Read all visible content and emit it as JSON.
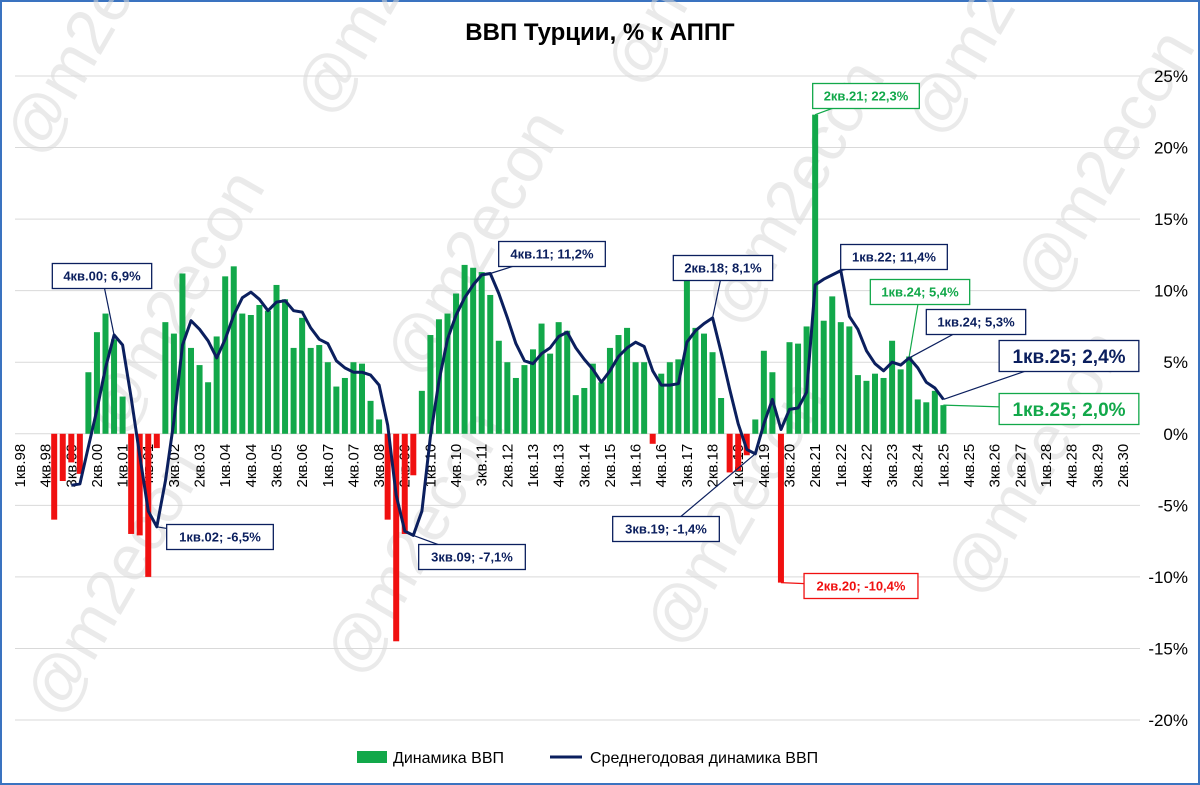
{
  "chart_data": {
    "type": "bar_line",
    "title": "ВВП Турции, % к АППГ",
    "watermark": "@m2econ",
    "categories": [
      "1кв.98",
      null,
      null,
      "4кв.98",
      null,
      null,
      "3кв.99",
      null,
      null,
      "2кв.00",
      null,
      null,
      "1кв.01",
      null,
      null,
      "4кв.01",
      null,
      null,
      "3кв.02",
      null,
      null,
      "2кв.03",
      null,
      null,
      "1кв.04",
      null,
      null,
      "4кв.04",
      null,
      null,
      "3кв.05",
      null,
      null,
      "2кв.06",
      null,
      null,
      "1кв.07",
      null,
      null,
      "4кв.07",
      null,
      null,
      "3кв.08",
      null,
      null,
      "2кв.09",
      null,
      null,
      "1кв.10",
      null,
      null,
      "4кв.10",
      null,
      null,
      "3кв.11",
      null,
      null,
      "2кв.12",
      null,
      null,
      "1кв.13",
      null,
      null,
      "4кв.13",
      null,
      null,
      "3кв.14",
      null,
      null,
      "2кв.15",
      null,
      null,
      "1кв.16",
      null,
      null,
      "4кв.16",
      null,
      null,
      "3кв.17",
      null,
      null,
      "2кв.18",
      null,
      null,
      "1кв.19",
      null,
      null,
      "4кв.19",
      null,
      null,
      "3кв.20",
      null,
      null,
      "2кв.21",
      null,
      null,
      "1кв.22",
      null,
      null,
      "4кв.22",
      null,
      null,
      "3кв.23",
      null,
      null,
      "2кв.24",
      null,
      null,
      "1кв.25",
      null,
      null,
      "4кв.25",
      null,
      null,
      "3кв.26",
      null,
      null,
      "2кв.27",
      null,
      null,
      "1кв.28",
      null,
      null,
      "4кв.28",
      null,
      null,
      "3кв.29",
      null,
      null,
      "2кв.30"
    ],
    "series": [
      {
        "name": "Динамика ВВП",
        "type": "bar",
        "color": "#12a84a",
        "negative_color": "#f01010",
        "values": [
          null,
          null,
          null,
          null,
          -6.0,
          -3.3,
          -2.0,
          -2.8,
          4.3,
          7.1,
          8.4,
          6.6,
          2.6,
          -7.0,
          -7.1,
          -10.0,
          -1.0,
          7.8,
          7.0,
          11.2,
          6.0,
          4.8,
          3.6,
          6.8,
          11.0,
          11.7,
          8.4,
          8.3,
          9.0,
          8.6,
          10.4,
          9.4,
          6.0,
          8.1,
          6.0,
          6.2,
          5.0,
          3.3,
          3.9,
          5.0,
          4.9,
          2.3,
          1.0,
          -6.0,
          -14.5,
          -7.0,
          -2.9,
          3.0,
          6.9,
          8.0,
          8.4,
          9.8,
          11.8,
          11.6,
          11.3,
          9.7,
          6.5,
          5.0,
          3.9,
          4.8,
          5.9,
          7.7,
          5.6,
          7.8,
          7.2,
          2.7,
          3.2,
          4.9,
          3.6,
          6.0,
          6.9,
          7.4,
          5.0,
          5.0,
          -0.7,
          4.2,
          5.0,
          5.2,
          11.0,
          7.4,
          7.0,
          5.7,
          2.5,
          -2.7,
          -2.6,
          -1.5,
          1.0,
          5.8,
          4.3,
          -10.4,
          6.4,
          6.3,
          7.5,
          22.3,
          7.9,
          9.6,
          7.8,
          7.5,
          4.1,
          3.7,
          4.2,
          3.9,
          6.5,
          4.5,
          5.4,
          2.4,
          2.2,
          3.0,
          2.0,
          null,
          null,
          null,
          null,
          null,
          null,
          null,
          null,
          null,
          null,
          null,
          null,
          null,
          null,
          null,
          null,
          null,
          null,
          null,
          null,
          null
        ]
      },
      {
        "name": "Среднегодовая динамика ВВП",
        "type": "line",
        "color": "#0b1f5e",
        "values": [
          null,
          null,
          null,
          null,
          null,
          null,
          -3.6,
          -3.5,
          -0.9,
          1.7,
          4.6,
          6.9,
          6.2,
          2.5,
          -1.5,
          -5.4,
          -6.5,
          -3.3,
          0.9,
          6.2,
          7.9,
          7.3,
          6.5,
          5.3,
          6.6,
          8.3,
          9.5,
          9.9,
          9.4,
          8.6,
          9.2,
          9.3,
          8.6,
          8.5,
          7.4,
          6.6,
          6.3,
          5.1,
          4.6,
          4.3,
          4.3,
          4.1,
          3.4,
          0.6,
          -4.3,
          -6.8,
          -7.1,
          -5.4,
          -0.2,
          3.7,
          6.6,
          8.3,
          9.5,
          10.4,
          11.1,
          11.2,
          9.8,
          8.1,
          6.3,
          5.1,
          4.9,
          5.6,
          6.0,
          6.8,
          7.1,
          6.0,
          5.2,
          4.5,
          3.6,
          4.4,
          5.4,
          6.0,
          6.4,
          6.1,
          4.4,
          3.4,
          3.4,
          3.5,
          6.4,
          7.2,
          7.7,
          8.1,
          5.7,
          3.1,
          0.7,
          -1.1,
          -1.4,
          0.7,
          2.4,
          0.3,
          1.7,
          1.8,
          2.9,
          10.4,
          10.8,
          11.1,
          11.4,
          8.2,
          7.3,
          5.8,
          4.9,
          4.4,
          5.0,
          4.8,
          5.3,
          4.6,
          3.6,
          3.2,
          2.4,
          null,
          null,
          null,
          null,
          null,
          null,
          null,
          null,
          null,
          null,
          null,
          null,
          null,
          null,
          null,
          null,
          null,
          null,
          null,
          null,
          null
        ]
      }
    ],
    "ylim": [
      -20,
      25
    ],
    "yticks": [
      {
        "value": -20,
        "label": "-20%"
      },
      {
        "value": -15,
        "label": "-15%"
      },
      {
        "value": -10,
        "label": "-10%"
      },
      {
        "value": -5,
        "label": "-5%"
      },
      {
        "value": 0,
        "label": "0%"
      },
      {
        "value": 5,
        "label": "5%"
      },
      {
        "value": 10,
        "label": "10%"
      },
      {
        "value": 15,
        "label": "15%"
      },
      {
        "value": 20,
        "label": "20%"
      },
      {
        "value": 25,
        "label": "25%"
      }
    ],
    "grid": true,
    "y_axis_side": "right",
    "legend": "bottom",
    "annotations": [
      {
        "text": "4кв.00; 6,9%",
        "color": "#0b1f5e"
      },
      {
        "text": "1кв.02; -6,5%",
        "color": "#0b1f5e"
      },
      {
        "text": "3кв.09; -7,1%",
        "color": "#0b1f5e"
      },
      {
        "text": "4кв.11; 11,2%",
        "color": "#0b1f5e"
      },
      {
        "text": "2кв.18; 8,1%",
        "color": "#0b1f5e"
      },
      {
        "text": "3кв.19; -1,4%",
        "color": "#0b1f5e"
      },
      {
        "text": "2кв.20; -10,4%",
        "color": "#f01010"
      },
      {
        "text": "2кв.21; 22,3%",
        "color": "#12a84a"
      },
      {
        "text": "1кв.22; 11,4%",
        "color": "#0b1f5e"
      },
      {
        "text": "1кв.24; 5,4%",
        "color": "#12a84a"
      },
      {
        "text": "1кв.24; 5,3%",
        "color": "#0b1f5e"
      },
      {
        "text": "1кв.25; 2,4%",
        "color": "#0b1f5e"
      },
      {
        "text": "1кв.25; 2,0%",
        "color": "#12a84a"
      }
    ]
  }
}
